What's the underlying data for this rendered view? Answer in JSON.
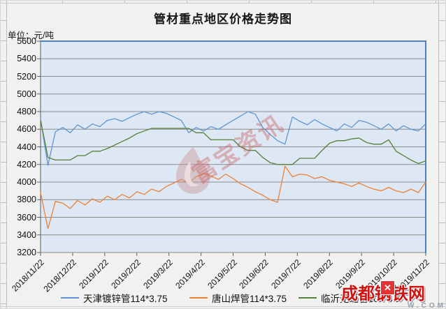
{
  "page": {
    "title": "管材重点地区价格走势图",
    "unit_label": "单位：元/吨"
  },
  "watermark": {
    "text": "富宝资讯"
  },
  "logo": {
    "text": "成都钢铁网",
    "sub": "W.COM",
    "x_badge": "✕"
  },
  "chart_data": {
    "type": "line",
    "title": "管材重点地区价格走势图",
    "ylabel": "元/吨",
    "ylim": [
      3200,
      5600
    ],
    "ytick_step": 200,
    "grid": true,
    "legend_position": "bottom",
    "x_labels": [
      "2018/11/22",
      "2018/12/22",
      "2019/1/22",
      "2019/2/22",
      "2019/3/22",
      "2019/4/22",
      "2019/5/22",
      "2019/6/22",
      "2019/7/22",
      "2019/8/22",
      "2019/9/22",
      "2019/10/22",
      "2019/11/22"
    ],
    "x_sampling": "weekly points from 2018/11/22 to 2019/11/22",
    "plot_bg": "#dde8f4",
    "grid_color": "#8a8a8a",
    "frame_color": "#4f81bd",
    "axis_color": "#5a5a5a",
    "series": [
      {
        "name": "天津镀锌管114*3.75",
        "color": "#6295cf",
        "values": [
          4720,
          4190,
          4570,
          4620,
          4560,
          4650,
          4600,
          4660,
          4630,
          4700,
          4720,
          4690,
          4730,
          4770,
          4800,
          4770,
          4800,
          4780,
          4740,
          4700,
          4560,
          4620,
          4580,
          4630,
          4600,
          4650,
          4700,
          4750,
          4800,
          4770,
          4620,
          4540,
          4470,
          4430,
          4740,
          4690,
          4650,
          4710,
          4660,
          4620,
          4580,
          4660,
          4620,
          4700,
          4680,
          4640,
          4600,
          4660,
          4580,
          4640,
          4600,
          4580,
          4660
        ]
      },
      {
        "name": "唐山焊管114*3.75",
        "color": "#ed8136",
        "values": [
          3880,
          3470,
          3780,
          3760,
          3700,
          3790,
          3740,
          3810,
          3770,
          3840,
          3800,
          3860,
          3820,
          3890,
          3860,
          3920,
          3890,
          3950,
          3990,
          4030,
          3990,
          4060,
          4100,
          4070,
          4030,
          4090,
          4040,
          3980,
          3940,
          3890,
          3850,
          3800,
          3770,
          4180,
          4060,
          4090,
          4080,
          4040,
          4060,
          4020,
          4000,
          3980,
          3950,
          3990,
          3950,
          3920,
          3900,
          3940,
          3900,
          3880,
          3920,
          3880,
          4000
        ]
      },
      {
        "name": "临沂无缝管108*4.5",
        "color": "#538135",
        "values": [
          4700,
          4280,
          4250,
          4250,
          4250,
          4300,
          4300,
          4350,
          4350,
          4380,
          4420,
          4460,
          4500,
          4550,
          4580,
          4610,
          4610,
          4610,
          4610,
          4610,
          4610,
          4560,
          4560,
          4480,
          4480,
          4480,
          4480,
          4400,
          4360,
          4360,
          4280,
          4220,
          4200,
          4200,
          4200,
          4270,
          4270,
          4270,
          4360,
          4440,
          4470,
          4470,
          4490,
          4500,
          4450,
          4430,
          4430,
          4480,
          4350,
          4300,
          4250,
          4210,
          4240
        ]
      }
    ]
  }
}
